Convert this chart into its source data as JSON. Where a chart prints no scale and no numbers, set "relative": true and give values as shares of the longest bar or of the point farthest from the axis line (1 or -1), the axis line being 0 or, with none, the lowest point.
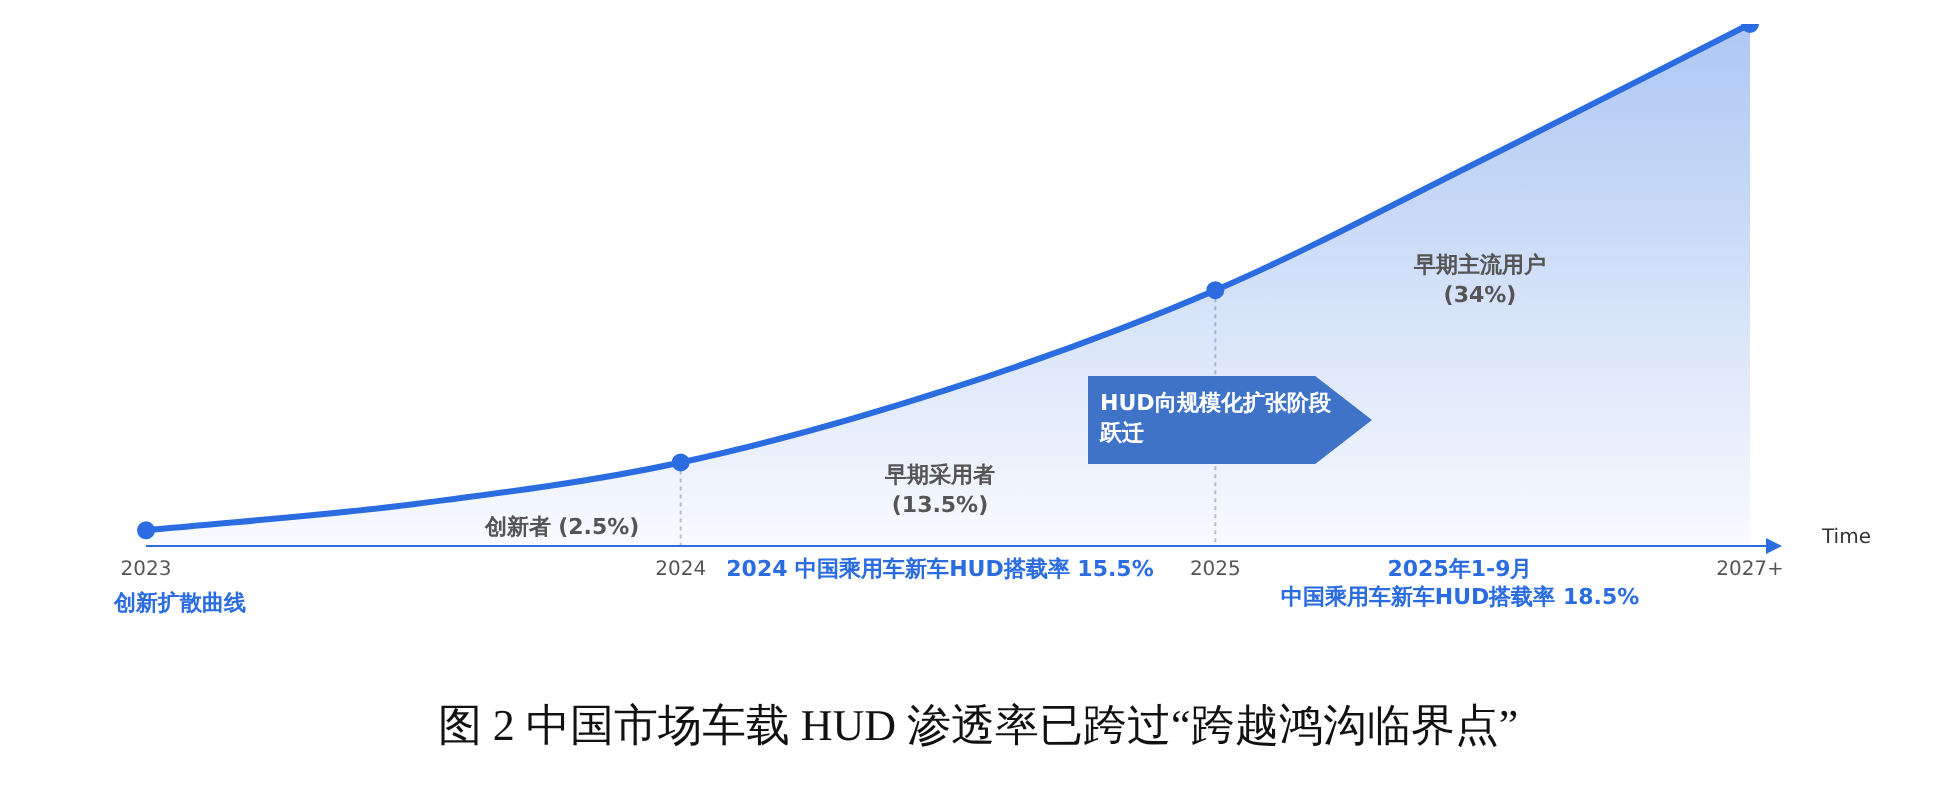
{
  "chart_data": {
    "type": "area",
    "title": "图 2 中国市场车载 HUD 渗透率已跨过“跨越鸿沟临界点”",
    "xlabel": "Time",
    "relative": true,
    "categories": [
      "2023",
      null,
      "2024",
      null,
      "2025",
      null,
      "2027+"
    ],
    "series": [
      {
        "color": "#2b6de0",
        "values": [
          0.03,
          0.08,
          0.16,
          0.3,
          0.49,
          0.74,
          1
        ]
      }
    ],
    "marker": "circle",
    "grid": false,
    "legend": false,
    "ref_lines": [
      {
        "axis": "x",
        "value": "2024"
      },
      {
        "axis": "x",
        "value": "2025"
      }
    ],
    "annotations": [
      "创新扩散曲线",
      "创新者 (2.5%)",
      "早期采用者\n(13.5%)",
      "早期主流用户\n(34%)",
      "HUD向规模化扩张阶段跃迁",
      "2024 中国乘用车新车HUD搭载率 15.5%",
      "2025年1-9月",
      "中国乘用车新车HUD搭载率 18.5%"
    ]
  }
}
